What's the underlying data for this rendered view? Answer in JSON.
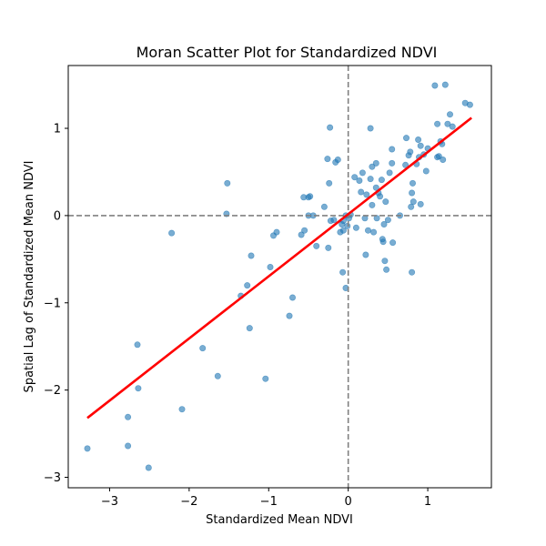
{
  "chart_data": {
    "type": "scatter",
    "title": "Moran Scatter Plot for Standardized NDVI",
    "xlabel": "Standardized Mean NDVI",
    "ylabel": "Spatial Lag of Standardized Mean NDVI",
    "xlim": [
      -3.52,
      1.8
    ],
    "ylim": [
      -3.12,
      1.72
    ],
    "xticks": [
      -3,
      -2,
      -1,
      0,
      1
    ],
    "yticks": [
      -3,
      -2,
      -1,
      0,
      1
    ],
    "xtick_labels": [
      "−3",
      "−2",
      "−1",
      "0",
      "1"
    ],
    "ytick_labels": [
      "−3",
      "−2",
      "−1",
      "0",
      "1"
    ],
    "grid": false,
    "point_color": "#1f77b4",
    "point_opacity": 0.6,
    "fit_line": {
      "color": "#ff0000",
      "x": [
        -3.28,
        1.55
      ],
      "y": [
        -2.32,
        1.12
      ]
    },
    "reference_lines": {
      "color": "#808080",
      "style": "dashed",
      "x": 0,
      "y": 0
    },
    "points": [
      [
        -3.28,
        -2.67
      ],
      [
        -2.77,
        -2.64
      ],
      [
        -2.77,
        -2.31
      ],
      [
        -2.51,
        -2.89
      ],
      [
        -2.65,
        -1.48
      ],
      [
        -2.64,
        -1.98
      ],
      [
        -2.09,
        -2.22
      ],
      [
        -1.83,
        -1.52
      ],
      [
        -1.64,
        -1.84
      ],
      [
        -1.04,
        -1.87
      ],
      [
        -1.24,
        -1.29
      ],
      [
        -0.74,
        -1.15
      ],
      [
        -0.7,
        -0.94
      ],
      [
        -1.35,
        -0.92
      ],
      [
        -1.27,
        -0.8
      ],
      [
        -1.22,
        -0.46
      ],
      [
        -0.98,
        -0.59
      ],
      [
        -0.94,
        -0.23
      ],
      [
        -0.9,
        -0.19
      ],
      [
        -2.22,
        -0.2
      ],
      [
        -1.52,
        0.37
      ],
      [
        -1.53,
        0.02
      ],
      [
        -0.59,
        -0.22
      ],
      [
        -0.55,
        -0.17
      ],
      [
        -0.56,
        0.21
      ],
      [
        -0.48,
        0.22
      ],
      [
        -0.5,
        0.21
      ],
      [
        -0.5,
        0.0
      ],
      [
        -0.44,
        0.0
      ],
      [
        -0.4,
        -0.35
      ],
      [
        -0.3,
        0.1
      ],
      [
        -0.25,
        -0.37
      ],
      [
        -0.26,
        0.65
      ],
      [
        -0.24,
        0.37
      ],
      [
        -0.23,
        1.01
      ],
      [
        -0.22,
        -0.06
      ],
      [
        -0.18,
        -0.05
      ],
      [
        -0.16,
        0.61
      ],
      [
        -0.13,
        0.64
      ],
      [
        -0.1,
        -0.19
      ],
      [
        -0.08,
        -0.1
      ],
      [
        -0.06,
        -0.17
      ],
      [
        -0.07,
        -0.65
      ],
      [
        -0.03,
        -0.83
      ],
      [
        -0.03,
        0.0
      ],
      [
        -0.06,
        -0.06
      ],
      [
        -0.01,
        -0.12
      ],
      [
        0.01,
        -0.03
      ],
      [
        0.03,
        0.01
      ],
      [
        0.08,
        0.44
      ],
      [
        0.1,
        -0.14
      ],
      [
        0.14,
        0.4
      ],
      [
        0.16,
        0.27
      ],
      [
        0.18,
        0.49
      ],
      [
        0.21,
        -0.03
      ],
      [
        0.22,
        -0.45
      ],
      [
        0.23,
        0.24
      ],
      [
        0.25,
        -0.17
      ],
      [
        0.28,
        0.42
      ],
      [
        0.3,
        0.56
      ],
      [
        0.28,
        1.0
      ],
      [
        0.3,
        0.12
      ],
      [
        0.32,
        -0.19
      ],
      [
        0.35,
        0.6
      ],
      [
        0.35,
        0.32
      ],
      [
        0.36,
        -0.03
      ],
      [
        0.38,
        0.26
      ],
      [
        0.4,
        0.22
      ],
      [
        0.42,
        0.41
      ],
      [
        0.43,
        -0.27
      ],
      [
        0.44,
        -0.3
      ],
      [
        0.45,
        -0.1
      ],
      [
        0.47,
        0.16
      ],
      [
        0.46,
        -0.52
      ],
      [
        0.48,
        -0.62
      ],
      [
        0.5,
        -0.05
      ],
      [
        0.52,
        0.49
      ],
      [
        0.55,
        0.6
      ],
      [
        0.56,
        -0.31
      ],
      [
        0.55,
        0.76
      ],
      [
        0.65,
        0.0
      ],
      [
        0.72,
        0.58
      ],
      [
        0.73,
        0.89
      ],
      [
        0.76,
        0.69
      ],
      [
        0.78,
        0.73
      ],
      [
        0.79,
        0.1
      ],
      [
        0.8,
        -0.65
      ],
      [
        0.8,
        0.26
      ],
      [
        0.81,
        0.37
      ],
      [
        0.82,
        0.16
      ],
      [
        0.86,
        0.59
      ],
      [
        0.88,
        0.87
      ],
      [
        0.89,
        0.67
      ],
      [
        0.91,
        0.8
      ],
      [
        0.91,
        0.13
      ],
      [
        0.95,
        0.7
      ],
      [
        0.98,
        0.51
      ],
      [
        1.0,
        0.77
      ],
      [
        1.09,
        1.49
      ],
      [
        1.12,
        1.05
      ],
      [
        1.12,
        0.67
      ],
      [
        1.14,
        0.68
      ],
      [
        1.16,
        0.85
      ],
      [
        1.18,
        0.82
      ],
      [
        1.19,
        0.64
      ],
      [
        1.22,
        1.5
      ],
      [
        1.25,
        1.05
      ],
      [
        1.28,
        1.16
      ],
      [
        1.31,
        1.02
      ],
      [
        1.47,
        1.29
      ],
      [
        1.53,
        1.27
      ]
    ]
  }
}
